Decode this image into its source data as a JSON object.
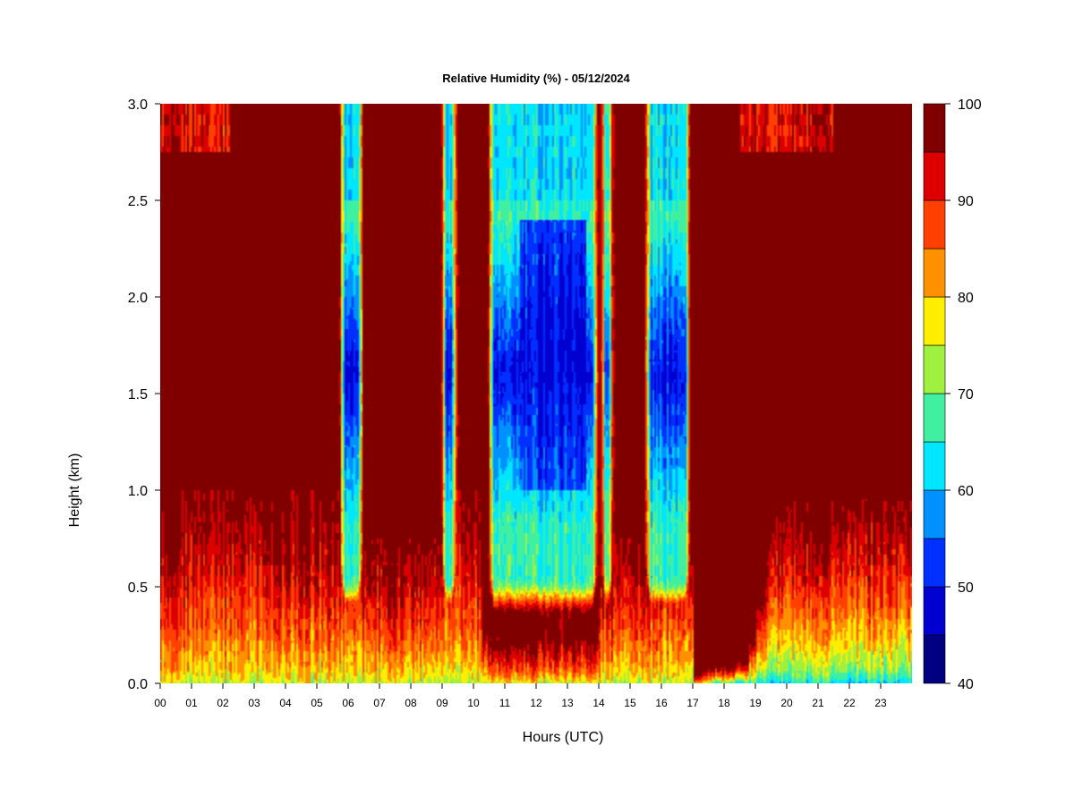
{
  "chart_data": {
    "type": "heatmap",
    "title": "Relative Humidity (%) - 05/12/2024",
    "xlabel": "Hours (UTC)",
    "ylabel": "Height (km)",
    "x_tick_labels": [
      "00",
      "01",
      "02",
      "03",
      "04",
      "05",
      "06",
      "07",
      "08",
      "09",
      "10",
      "11",
      "12",
      "13",
      "14",
      "15",
      "16",
      "17",
      "18",
      "19",
      "20",
      "21",
      "22",
      "23"
    ],
    "y_tick_labels": [
      "0.0",
      "0.5",
      "1.0",
      "1.5",
      "2.0",
      "2.5",
      "3.0"
    ],
    "xlim": [
      0,
      24
    ],
    "ylim": [
      0,
      3
    ],
    "colorbar": {
      "tick_labels": [
        "40",
        "50",
        "60",
        "70",
        "80",
        "90",
        "100"
      ],
      "levels": [
        40,
        45,
        50,
        55,
        60,
        65,
        70,
        75,
        80,
        85,
        90,
        95,
        100
      ],
      "colors": [
        "#000080",
        "#0000d0",
        "#0030ff",
        "#0090ff",
        "#00e6ff",
        "#40f0a0",
        "#a0f040",
        "#ffee00",
        "#ff9000",
        "#ff4000",
        "#dd0000",
        "#800000"
      ]
    },
    "clear_layer_intervals_utc": [
      [
        5.8,
        6.4
      ],
      [
        9.05,
        9.4
      ],
      [
        10.55,
        13.9
      ],
      [
        14.15,
        14.4
      ],
      [
        15.55,
        16.85
      ]
    ],
    "clear_layer_height_km": [
      0.45,
      3.0
    ],
    "driest_band_height_km": [
      1.15,
      2.05
    ],
    "min_humidity_percent": 45
  }
}
